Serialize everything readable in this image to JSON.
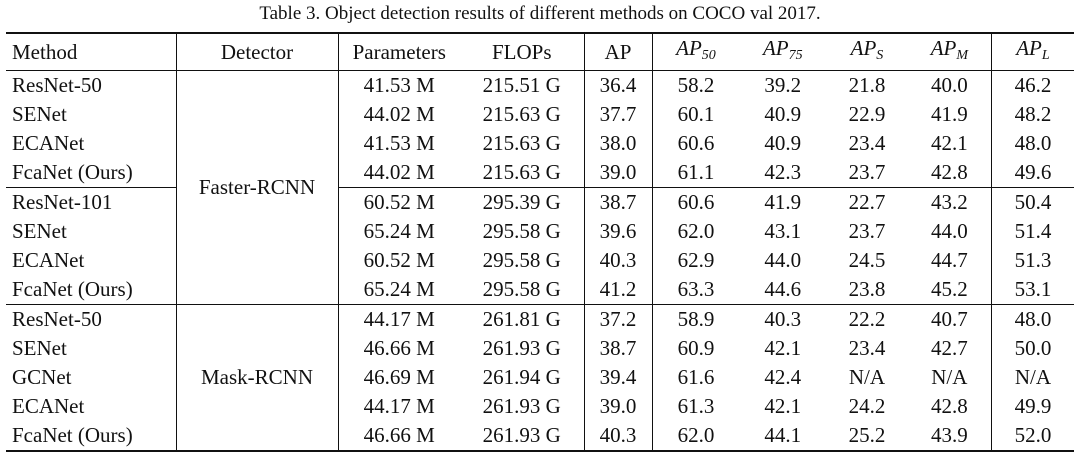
{
  "caption": "Table 3. Object detection results of different methods on COCO val 2017.",
  "columns": [
    "Method",
    "Detector",
    "Parameters",
    "FLOPs",
    "AP",
    "AP",
    "AP",
    "AP",
    "AP",
    "AP"
  ],
  "column_subscripts": [
    "",
    "",
    "",
    "",
    "",
    "50",
    "75",
    "S",
    "M",
    "L"
  ],
  "groups": [
    {
      "detector": "Faster-RCNN",
      "rows": [
        {
          "method": "ResNet-50",
          "params": "41.53 M",
          "flops": "215.51 G",
          "ap": "36.4",
          "ap50": "58.2",
          "ap75": "39.2",
          "aps": "21.8",
          "apm": "40.0",
          "apl": "46.2",
          "bold": []
        },
        {
          "method": "SENet",
          "params": "44.02 M",
          "flops": "215.63 G",
          "ap": "37.7",
          "ap50": "60.1",
          "ap75": "40.9",
          "aps": "22.9",
          "apm": "41.9",
          "apl": "48.2",
          "bold": []
        },
        {
          "method": "ECANet",
          "params": "41.53 M",
          "flops": "215.63 G",
          "ap": "38.0",
          "ap50": "60.6",
          "ap75": "40.9",
          "aps": "23.4",
          "apm": "42.1",
          "apl": "48.0",
          "bold": []
        },
        {
          "method": "FcaNet (Ours)",
          "params": "44.02 M",
          "flops": "215.63 G",
          "ap": "39.0",
          "ap50": "61.1",
          "ap75": "42.3",
          "aps": "23.7",
          "apm": "42.8",
          "apl": "49.6",
          "bold": [
            "ap",
            "ap50",
            "ap75",
            "aps",
            "apm",
            "apl"
          ]
        },
        {
          "method": "ResNet-101",
          "params": "60.52 M",
          "flops": "295.39 G",
          "ap": "38.7",
          "ap50": "60.6",
          "ap75": "41.9",
          "aps": "22.7",
          "apm": "43.2",
          "apl": "50.4",
          "bold": []
        },
        {
          "method": "SENet",
          "params": "65.24 M",
          "flops": "295.58 G",
          "ap": "39.6",
          "ap50": "62.0",
          "ap75": "43.1",
          "aps": "23.7",
          "apm": "44.0",
          "apl": "51.4",
          "bold": []
        },
        {
          "method": "ECANet",
          "params": "60.52 M",
          "flops": "295.58 G",
          "ap": "40.3",
          "ap50": "62.9",
          "ap75": "44.0",
          "aps": "24.5",
          "apm": "44.7",
          "apl": "51.3",
          "bold": [
            "aps"
          ]
        },
        {
          "method": "FcaNet (Ours)",
          "params": "65.24 M",
          "flops": "295.58 G",
          "ap": "41.2",
          "ap50": "63.3",
          "ap75": "44.6",
          "aps": "23.8",
          "apm": "45.2",
          "apl": "53.1",
          "bold": [
            "ap",
            "ap50",
            "ap75",
            "apm",
            "apl"
          ]
        }
      ],
      "separator_after": [
        3
      ]
    },
    {
      "detector": "Mask-RCNN",
      "rows": [
        {
          "method": "ResNet-50",
          "params": "44.17 M",
          "flops": "261.81 G",
          "ap": "37.2",
          "ap50": "58.9",
          "ap75": "40.3",
          "aps": "22.2",
          "apm": "40.7",
          "apl": "48.0",
          "bold": []
        },
        {
          "method": "SENet",
          "params": "46.66 M",
          "flops": "261.93 G",
          "ap": "38.7",
          "ap50": "60.9",
          "ap75": "42.1",
          "aps": "23.4",
          "apm": "42.7",
          "apl": "50.0",
          "bold": []
        },
        {
          "method": "GCNet",
          "params": "46.69 M",
          "flops": "261.94 G",
          "ap": "39.4",
          "ap50": "61.6",
          "ap75": "42.4",
          "aps": "N/A",
          "apm": "N/A",
          "apl": "N/A",
          "bold": []
        },
        {
          "method": "ECANet",
          "params": "44.17 M",
          "flops": "261.93 G",
          "ap": "39.0",
          "ap50": "61.3",
          "ap75": "42.1",
          "aps": "24.2",
          "apm": "42.8",
          "apl": "49.9",
          "bold": []
        },
        {
          "method": "FcaNet (Ours)",
          "params": "46.66 M",
          "flops": "261.93 G",
          "ap": "40.3",
          "ap50": "62.0",
          "ap75": "44.1",
          "aps": "25.2",
          "apm": "43.9",
          "apl": "52.0",
          "bold": [
            "ap",
            "ap50",
            "ap75",
            "aps",
            "apm",
            "apl"
          ]
        }
      ],
      "separator_after": []
    }
  ]
}
